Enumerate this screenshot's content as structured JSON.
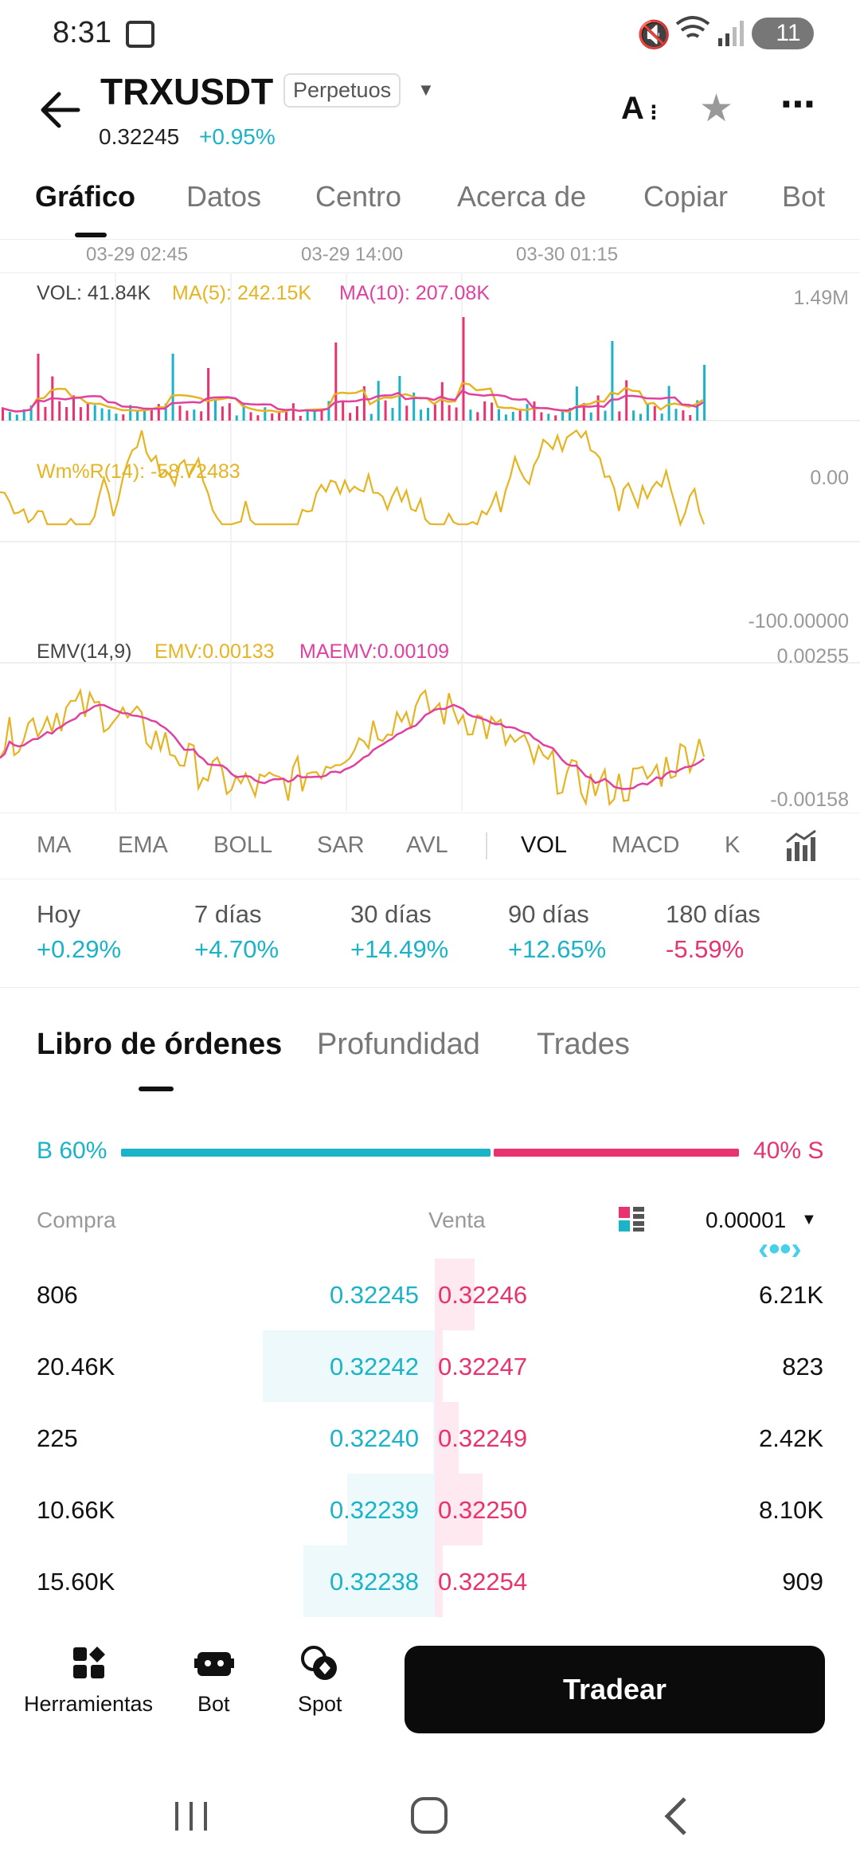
{
  "status_bar": {
    "time": "8:31",
    "battery": "11"
  },
  "header": {
    "symbol": "TRXUSDT",
    "badge": "Perpetuos",
    "price": "0.32245",
    "change": "+0.95%"
  },
  "tabs": [
    {
      "label": "Gráfico",
      "active": true
    },
    {
      "label": "Datos"
    },
    {
      "label": "Centro"
    },
    {
      "label": "Acerca de"
    },
    {
      "label": "Copiar"
    },
    {
      "label": "Bot"
    }
  ],
  "chart": {
    "time_labels": [
      "03-29 02:45",
      "03-29 14:00",
      "03-30 01:15"
    ],
    "vol_panel": {
      "vol": "VOL: 41.84K",
      "ma5": "MA(5): 242.15K",
      "ma10": "MA(10): 207.08K",
      "max": "1.49M"
    },
    "wr_panel": {
      "label": "Wm%R(14): -58.72483",
      "top": "0.00",
      "bottom": "-100.00000"
    },
    "emv_panel": {
      "label": "EMV(14,9)",
      "emv": "EMV:0.00133",
      "maemv": "MAEMV:0.00109",
      "top": "0.00255",
      "bottom": "-0.00158"
    },
    "colors": {
      "yellow": "#e6b422",
      "pink": "#e040a0",
      "teal": "#1ab3c8",
      "red": "#e8336f"
    }
  },
  "indicators": [
    "MA",
    "EMA",
    "BOLL",
    "SAR",
    "AVL",
    "VOL",
    "MACD",
    "K"
  ],
  "active_indicator": "VOL",
  "performance": [
    {
      "label": "Hoy",
      "value": "+0.29%",
      "dir": "up"
    },
    {
      "label": "7 días",
      "value": "+4.70%",
      "dir": "up"
    },
    {
      "label": "30 días",
      "value": "+14.49%",
      "dir": "up"
    },
    {
      "label": "90 días",
      "value": "+12.65%",
      "dir": "up"
    },
    {
      "label": "180 días",
      "value": "-5.59%",
      "dir": "down"
    }
  ],
  "book_tabs": [
    "Libro de órdenes",
    "Profundidad",
    "Trades"
  ],
  "ratio": {
    "buy": "B 60%",
    "sell": "40% S",
    "buy_pct": 60
  },
  "book_header": {
    "buy": "Compra",
    "sell": "Venta",
    "precision": "0.00001"
  },
  "order_rows": [
    {
      "buy_qty": "806",
      "bid": "0.32245",
      "ask": "0.32246",
      "sell_qty": "6.21K",
      "bid_depth": 0.0,
      "ask_depth": 0.05
    },
    {
      "buy_qty": "20.46K",
      "bid": "0.32242",
      "ask": "0.32247",
      "sell_qty": "823",
      "bid_depth": 0.98,
      "ask_depth": 0.01
    },
    {
      "buy_qty": "225",
      "bid": "0.32240",
      "ask": "0.32249",
      "sell_qty": "2.42K",
      "bid_depth": 0.01,
      "ask_depth": 0.03
    },
    {
      "buy_qty": "10.66K",
      "bid": "0.32239",
      "ask": "0.32250",
      "sell_qty": "8.10K",
      "bid_depth": 0.5,
      "ask_depth": 0.06
    },
    {
      "buy_qty": "15.60K",
      "bid": "0.32238",
      "ask": "0.32254",
      "sell_qty": "909",
      "bid_depth": 0.75,
      "ask_depth": 0.01
    }
  ],
  "bottom_nav": {
    "tools": "Herramientas",
    "bot": "Bot",
    "spot": "Spot",
    "trade": "Tradear"
  }
}
